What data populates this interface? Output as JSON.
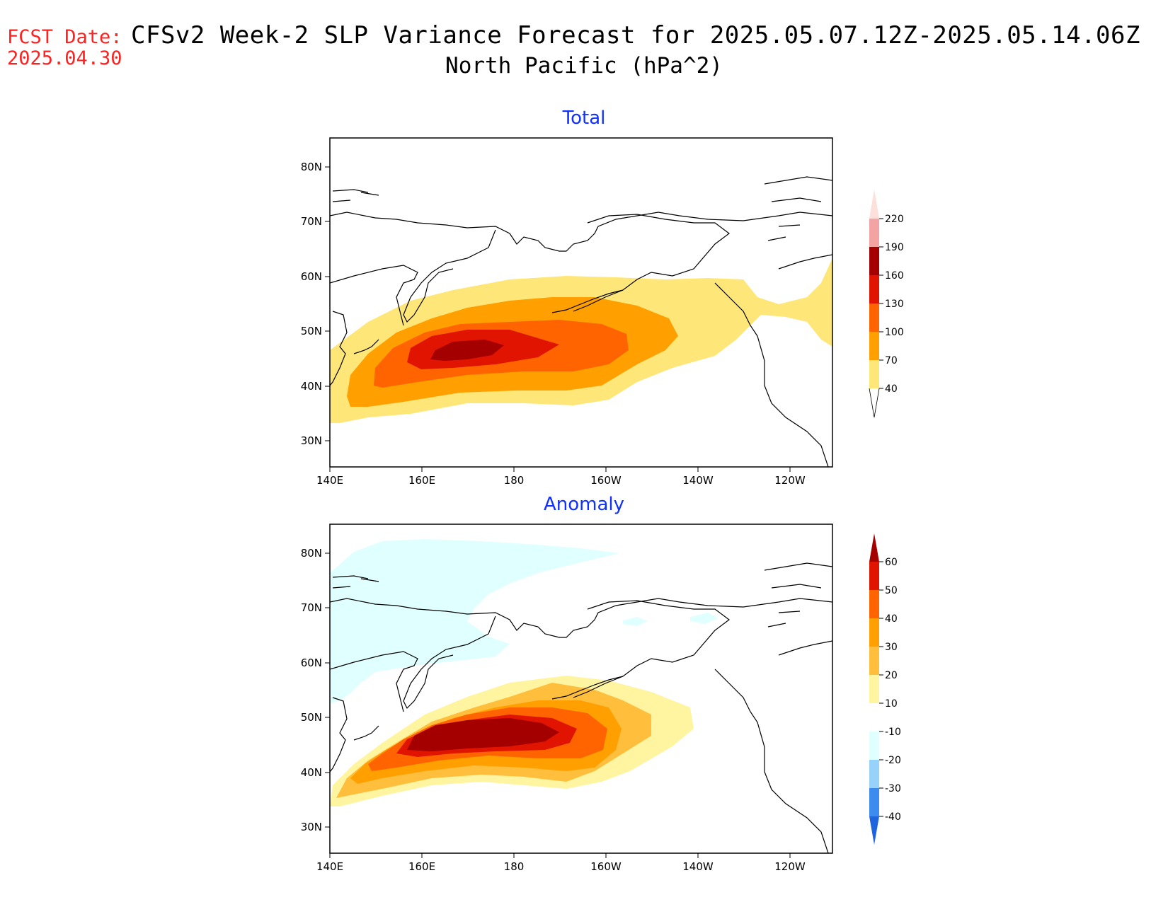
{
  "header": {
    "fcst_label": "FCST Date:",
    "fcst_date": "2025.04.30",
    "title_line1": "CFSv2 Week-2 SLP Variance Forecast for 2025.05.07.12Z-2025.05.14.06Z",
    "title_line2": "North Pacific (hPa^2)"
  },
  "axes": {
    "x_ticks": [
      "140E",
      "160E",
      "180",
      "160W",
      "140W",
      "120W"
    ],
    "y_ticks": [
      "80N",
      "70N",
      "60N",
      "50N",
      "40N",
      "30N"
    ]
  },
  "panels": [
    {
      "title": "Total",
      "colorbar": {
        "labels": [
          "220",
          "190",
          "160",
          "130",
          "100",
          "70",
          "40"
        ],
        "colors": [
          "#fde0dc",
          "#f4a3a3",
          "#a50000",
          "#e01400",
          "#ff6400",
          "#ffa000",
          "#ffe678"
        ]
      }
    },
    {
      "title": "Anomaly",
      "colorbar": {
        "labels": [
          "60",
          "50",
          "40",
          "30",
          "20",
          "10",
          "-10",
          "-20",
          "-30",
          "-40"
        ],
        "colors": [
          "#a50000",
          "#e01400",
          "#ff6400",
          "#ffa000",
          "#ffbe3c",
          "#fff5a0",
          "#ffffff",
          "#e0ffff",
          "#96d2fa",
          "#3c8cf0",
          "#1e64dc"
        ]
      }
    }
  ]
}
